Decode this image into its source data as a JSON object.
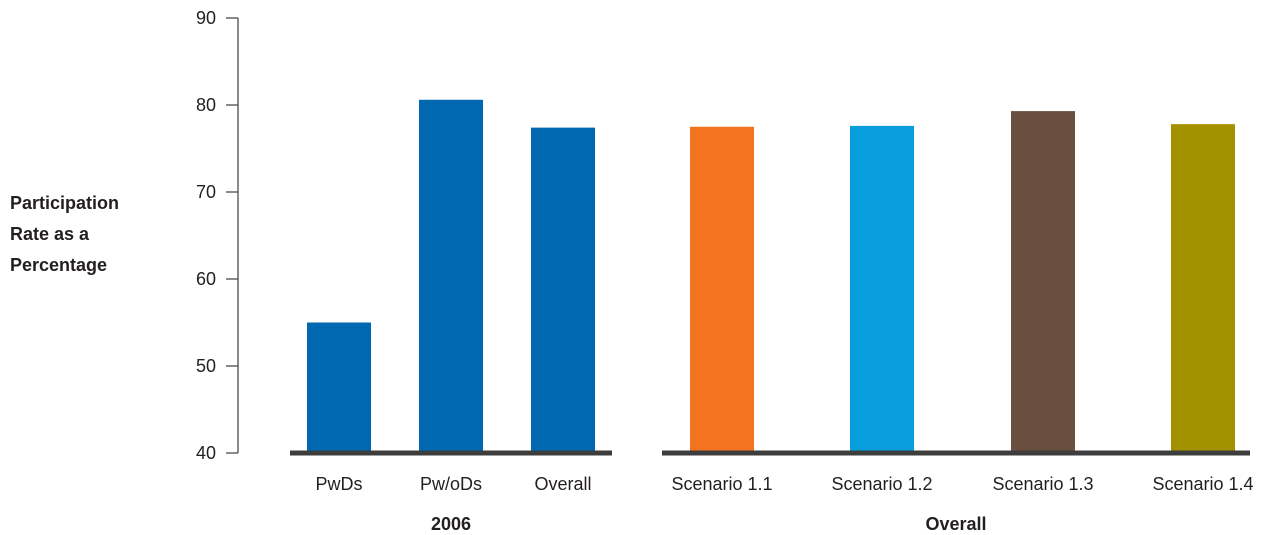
{
  "chart_data": {
    "type": "bar",
    "title": "",
    "xlabel": "",
    "ylabel": "Participation Rate as a Percentage",
    "ylabel_lines": [
      "Participation",
      "Rate as a",
      "Percentage"
    ],
    "ylim": [
      40,
      90
    ],
    "yticks": [
      40,
      50,
      60,
      70,
      80,
      90
    ],
    "grid": false,
    "legend": "none",
    "groups": [
      {
        "label": "2006",
        "categories": [
          "PwDs",
          "Pw/oDs",
          "Overall"
        ],
        "values": [
          55.0,
          80.6,
          77.4
        ],
        "colors": [
          "#0067b1",
          "#0067b1",
          "#0067b1"
        ]
      },
      {
        "label": "Overall",
        "categories": [
          "Scenario 1.1",
          "Scenario 1.2",
          "Scenario 1.3",
          "Scenario 1.4"
        ],
        "values": [
          77.5,
          77.6,
          79.3,
          77.8
        ],
        "colors": [
          "#f37321",
          "#089edd",
          "#6a4f40",
          "#a39200"
        ]
      }
    ],
    "colors": {
      "axis": "#3d3d3d",
      "baseline": "#3d3d3d",
      "text": "#231f20"
    }
  }
}
